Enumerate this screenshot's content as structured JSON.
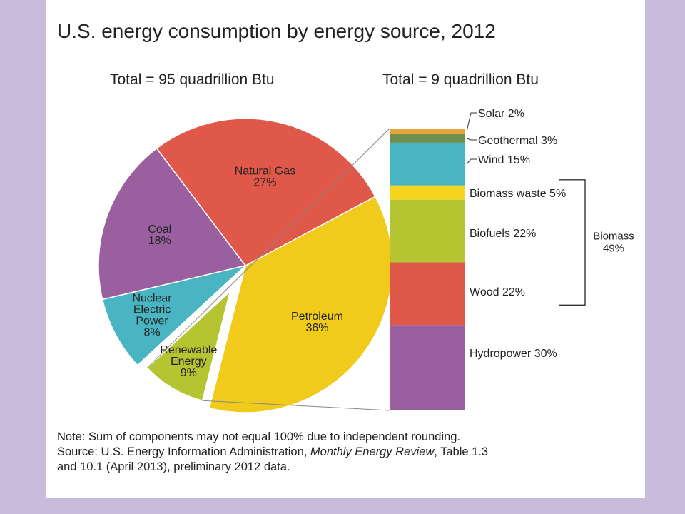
{
  "title": "U.S. energy consumption by energy source, 2012",
  "left_total": "Total = 95 quadrillion Btu",
  "right_total": "Total = 9 quadrillion Btu",
  "chart_data": [
    {
      "type": "pie",
      "slices": [
        {
          "name": "Petroleum",
          "value": 36,
          "label": "36%",
          "color": "#f0cb1c"
        },
        {
          "name": "Renewable Energy",
          "label_lines": [
            "Renewable",
            "Energy"
          ],
          "value": 9,
          "label": "9%",
          "color": "#b5c431",
          "exploded": true
        },
        {
          "name": "Nuclear Electric Power",
          "label_lines": [
            "Nuclear",
            "Electric",
            "Power"
          ],
          "value": 8,
          "label": "8%",
          "color": "#4ab5c2"
        },
        {
          "name": "Coal",
          "value": 18,
          "label": "18%",
          "color": "#9a5f9f"
        },
        {
          "name": "Natural Gas",
          "value": 27,
          "label": "27%",
          "color": "#e0584a"
        }
      ]
    },
    {
      "type": "bar",
      "stacked": true,
      "segments": [
        {
          "name": "Solar",
          "label": "Solar 2%",
          "value": 2,
          "color": "#e8a53a"
        },
        {
          "name": "Geothermal",
          "label": "Geothermal 3%",
          "value": 3,
          "color": "#6f8f4f"
        },
        {
          "name": "Wind",
          "label": "Wind 15%",
          "value": 15,
          "color": "#4ab5c2"
        },
        {
          "name": "Biomass waste",
          "label": "Biomass waste 5%",
          "value": 5,
          "color": "#f5d51f"
        },
        {
          "name": "Biofuels",
          "label": "Biofuels 22%",
          "value": 22,
          "color": "#b5c431"
        },
        {
          "name": "Wood",
          "label": "Wood 22%",
          "value": 22,
          "color": "#e0584a"
        },
        {
          "name": "Hydropower",
          "label": "Hydropower 30%",
          "value": 30,
          "color": "#9a5f9f"
        }
      ],
      "group_annotation": {
        "lines": [
          "Biomass",
          "49%"
        ],
        "members": [
          "Biomass waste",
          "Biofuels",
          "Wood"
        ]
      }
    }
  ],
  "notes": {
    "line1": "Note: Sum of components may not equal 100% due to independent rounding.",
    "line2_prefix": "Source: U.S. Energy Information Administration, ",
    "line2_italic": "Monthly Energy Review",
    "line2_suffix": ", Table 1.3",
    "line3": "and 10.1 (April 2013), preliminary 2012 data."
  }
}
